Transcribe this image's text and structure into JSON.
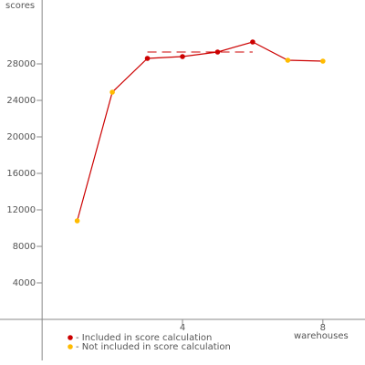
{
  "chart_data": {
    "type": "line",
    "y_label": "scores",
    "x_label": "warehouses",
    "x": [
      1,
      2,
      3,
      4,
      5,
      6,
      7,
      8
    ],
    "values": [
      10800,
      24900,
      28600,
      28800,
      29300,
      30400,
      28400,
      28300
    ],
    "included": [
      false,
      false,
      true,
      true,
      true,
      true,
      false,
      false
    ],
    "line_color": "#cc0000",
    "legend": [
      {
        "label": "- Included in score calculation",
        "color": "#cc0000"
      },
      {
        "label": "- Not included in score calculation",
        "color": "#ffbb00"
      }
    ],
    "score_line": {
      "x": [
        3,
        6
      ],
      "value": 29300,
      "color": "#cc0000"
    },
    "xlim": [
      -1.2,
      9.2
    ],
    "ylim": [
      -5000,
      35000
    ],
    "xticks": [
      4,
      8
    ],
    "yticks": [
      4000,
      8000,
      12000,
      16000,
      20000,
      24000,
      28000
    ]
  }
}
